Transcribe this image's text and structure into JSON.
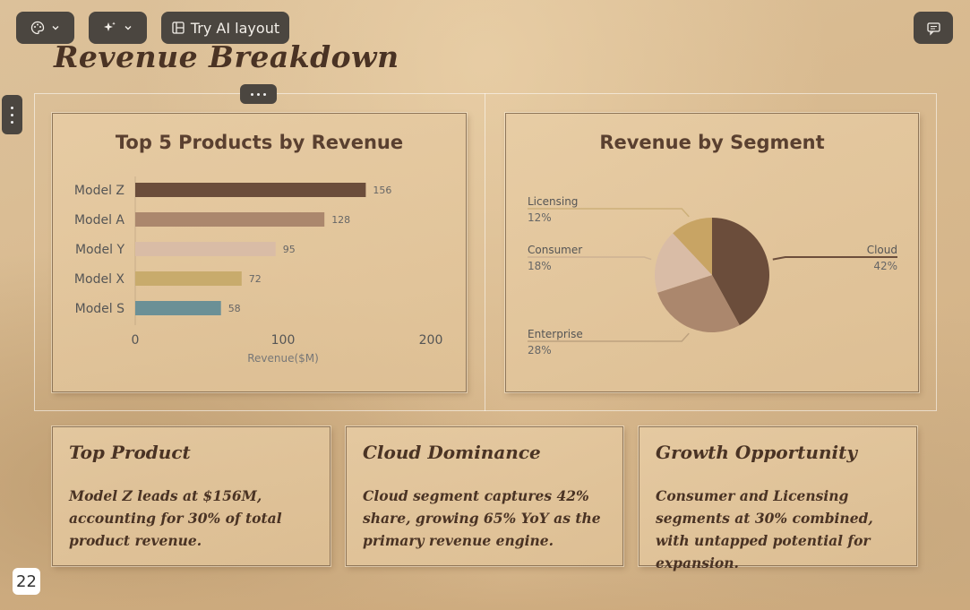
{
  "toolbar": {
    "theme_icon": "palette-icon",
    "ai_icon": "sparkles-icon",
    "try_ai_layout_label": "Try AI layout",
    "comment_icon": "comment-icon"
  },
  "slide": {
    "title": "Revenue Breakdown",
    "page_number": "22"
  },
  "colors": {
    "model_z": "#6b4d3b",
    "model_a": "#ab876d",
    "model_y": "#d9bca6",
    "model_x": "#c8ab6c",
    "model_s": "#6b9096",
    "cloud": "#6b4d3b",
    "enterprise": "#ab876d",
    "consumer": "#d9bca6",
    "licensing": "#c8a464"
  },
  "chart_data": [
    {
      "type": "bar",
      "orientation": "horizontal",
      "title": "Top 5 Products by Revenue",
      "categories": [
        "Model Z",
        "Model A",
        "Model Y",
        "Model X",
        "Model S"
      ],
      "values": [
        156,
        128,
        95,
        72,
        58
      ],
      "value_labels": [
        "156",
        "128",
        "95",
        "72",
        "58"
      ],
      "xlabel": "Revenue($M)",
      "ylabel": "",
      "xlim": [
        0,
        200
      ],
      "xticks": [
        "0",
        "100",
        "200"
      ],
      "grid": false
    },
    {
      "type": "pie",
      "title": "Revenue by Segment",
      "slices": [
        {
          "label": "Cloud",
          "percent_label": "42%",
          "value": 42
        },
        {
          "label": "Enterprise",
          "percent_label": "28%",
          "value": 28
        },
        {
          "label": "Consumer",
          "percent_label": "18%",
          "value": 18
        },
        {
          "label": "Licensing",
          "percent_label": "12%",
          "value": 12
        }
      ]
    }
  ],
  "insights": [
    {
      "title": "Top Product",
      "body": "Model Z leads at $156M, accounting for 30% of total product revenue."
    },
    {
      "title": "Cloud Dominance",
      "body": "Cloud segment captures 42% share, growing 65% YoY as the primary revenue engine."
    },
    {
      "title": "Growth Opportunity",
      "body": "Consumer and Licensing segments at 30% combined, with untapped potential for expansion."
    }
  ]
}
